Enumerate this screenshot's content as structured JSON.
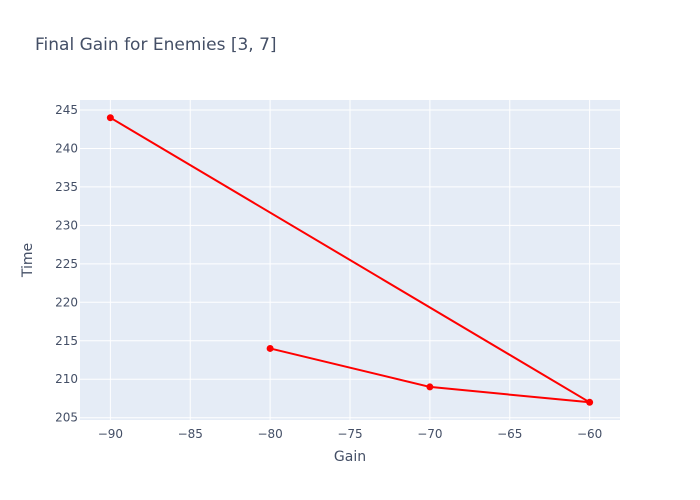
{
  "chart_data": {
    "type": "line",
    "title": "Final Gain for Enemies [3, 7]",
    "xlabel": "Gain",
    "ylabel": "Time",
    "xlim": [
      -91.9,
      -58.1
    ],
    "ylim": [
      204.7,
      246.3
    ],
    "xticks": [
      -90,
      -85,
      -80,
      -75,
      -70,
      -65,
      -60
    ],
    "xtick_labels": [
      "−90",
      "−85",
      "−80",
      "−75",
      "−70",
      "−65",
      "−60"
    ],
    "yticks": [
      205,
      210,
      215,
      220,
      225,
      230,
      235,
      240,
      245
    ],
    "ytick_labels": [
      "205",
      "210",
      "215",
      "220",
      "225",
      "230",
      "235",
      "240",
      "245"
    ],
    "grid": true,
    "series": [
      {
        "x": [
          -80,
          -70,
          -60,
          -90
        ],
        "y": [
          214,
          209,
          207,
          244
        ],
        "color": "#ff0000"
      }
    ]
  }
}
